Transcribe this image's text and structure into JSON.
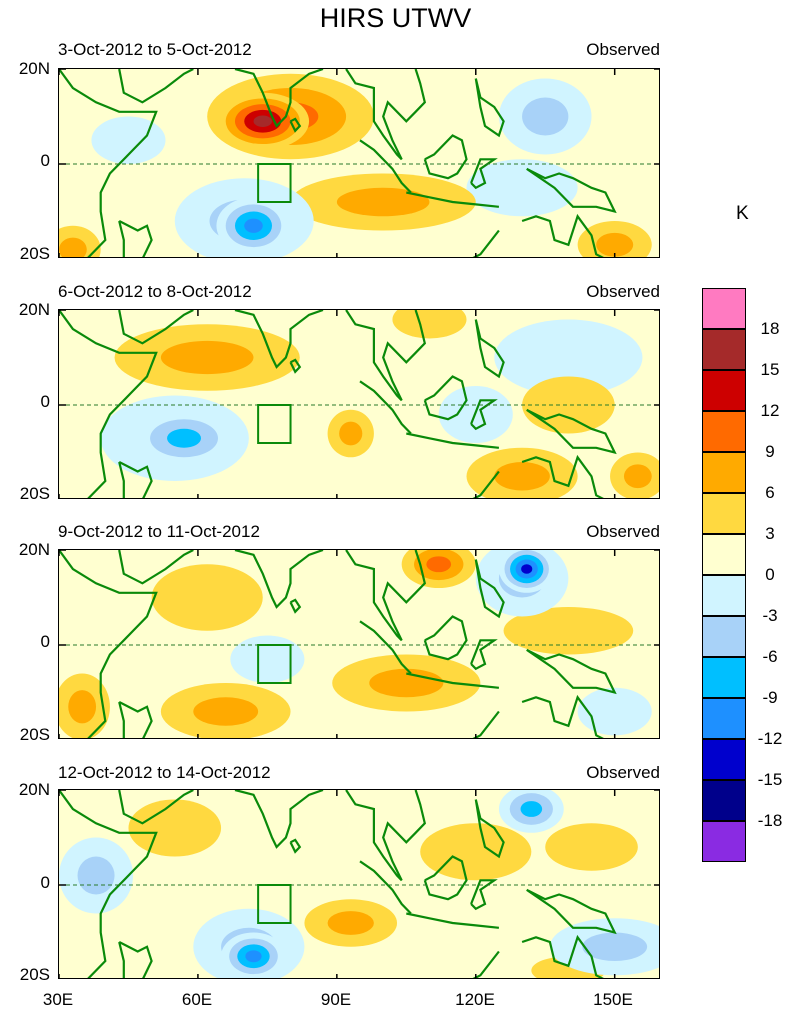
{
  "title": "HIRS UTWV",
  "unit": "K",
  "chart_data": [
    {
      "type": "heatmap",
      "title": "3-Oct-2012 to 5-Oct-2012",
      "label": "Observed",
      "ylabels": [
        "20N",
        "0",
        "20S"
      ],
      "ylim": [
        -20,
        20
      ],
      "xlim": [
        30,
        160
      ],
      "blobs": [
        {
          "lon": 74,
          "lat": 9,
          "rx": 10,
          "ry": 6,
          "v": 16
        },
        {
          "lon": 80,
          "lat": 10,
          "rx": 18,
          "ry": 9,
          "v": 9
        },
        {
          "lon": 100,
          "lat": -8,
          "rx": 20,
          "ry": 6,
          "v": 7
        },
        {
          "lon": 72,
          "lat": -13,
          "rx": 8,
          "ry": 6,
          "v": -12
        },
        {
          "lon": 70,
          "lat": -12,
          "rx": 15,
          "ry": 9,
          "v": -7
        },
        {
          "lon": 135,
          "lat": 10,
          "rx": 10,
          "ry": 8,
          "v": -7
        },
        {
          "lon": 130,
          "lat": -5,
          "rx": 12,
          "ry": 6,
          "v": -4
        },
        {
          "lon": 150,
          "lat": -17,
          "rx": 8,
          "ry": 5,
          "v": 8
        },
        {
          "lon": 33,
          "lat": -18,
          "rx": 6,
          "ry": 5,
          "v": 8
        },
        {
          "lon": 45,
          "lat": 5,
          "rx": 8,
          "ry": 5,
          "v": -4
        }
      ]
    },
    {
      "type": "heatmap",
      "title": "6-Oct-2012 to 8-Oct-2012",
      "label": "Observed",
      "ylabels": [
        "20N",
        "0",
        "20S"
      ],
      "ylim": [
        -20,
        20
      ],
      "xlim": [
        30,
        160
      ],
      "blobs": [
        {
          "lon": 62,
          "lat": 10,
          "rx": 20,
          "ry": 7,
          "v": 7
        },
        {
          "lon": 57,
          "lat": -7,
          "rx": 11,
          "ry": 6,
          "v": -10
        },
        {
          "lon": 55,
          "lat": -7,
          "rx": 16,
          "ry": 9,
          "v": -5
        },
        {
          "lon": 93,
          "lat": -6,
          "rx": 5,
          "ry": 5,
          "v": 6
        },
        {
          "lon": 140,
          "lat": 10,
          "rx": 16,
          "ry": 8,
          "v": -5
        },
        {
          "lon": 130,
          "lat": -15,
          "rx": 12,
          "ry": 6,
          "v": 8
        },
        {
          "lon": 155,
          "lat": -15,
          "rx": 6,
          "ry": 5,
          "v": 6
        },
        {
          "lon": 110,
          "lat": 18,
          "rx": 8,
          "ry": 4,
          "v": 5
        },
        {
          "lon": 140,
          "lat": 0,
          "rx": 10,
          "ry": 6,
          "v": 5
        },
        {
          "lon": 120,
          "lat": -2,
          "rx": 8,
          "ry": 6,
          "v": -3
        }
      ]
    },
    {
      "type": "heatmap",
      "title": "9-Oct-2012 to 11-Oct-2012",
      "label": "Observed",
      "ylabels": [
        "20N",
        "0",
        "20S"
      ],
      "ylim": [
        -20,
        20
      ],
      "xlim": [
        30,
        160
      ],
      "blobs": [
        {
          "lon": 131,
          "lat": 16,
          "rx": 6,
          "ry": 5,
          "v": -15
        },
        {
          "lon": 130,
          "lat": 14,
          "rx": 10,
          "ry": 8,
          "v": -7
        },
        {
          "lon": 112,
          "lat": 17,
          "rx": 8,
          "ry": 5,
          "v": 9
        },
        {
          "lon": 105,
          "lat": -8,
          "rx": 16,
          "ry": 6,
          "v": 7
        },
        {
          "lon": 66,
          "lat": -14,
          "rx": 14,
          "ry": 6,
          "v": 7
        },
        {
          "lon": 140,
          "lat": 3,
          "rx": 14,
          "ry": 5,
          "v": 5
        },
        {
          "lon": 35,
          "lat": -13,
          "rx": 6,
          "ry": 7,
          "v": 7
        },
        {
          "lon": 75,
          "lat": -3,
          "rx": 8,
          "ry": 5,
          "v": -4
        },
        {
          "lon": 150,
          "lat": -14,
          "rx": 8,
          "ry": 5,
          "v": -5
        },
        {
          "lon": 62,
          "lat": 10,
          "rx": 12,
          "ry": 7,
          "v": 3
        }
      ]
    },
    {
      "type": "heatmap",
      "title": "12-Oct-2012 to 14-Oct-2012",
      "label": "Observed",
      "ylabels": [
        "20N",
        "0",
        "20S"
      ],
      "ylim": [
        -20,
        20
      ],
      "xlim": [
        30,
        160
      ],
      "blobs": [
        {
          "lon": 72,
          "lat": -15,
          "rx": 7,
          "ry": 5,
          "v": -13
        },
        {
          "lon": 71,
          "lat": -13,
          "rx": 12,
          "ry": 8,
          "v": -7
        },
        {
          "lon": 132,
          "lat": 16,
          "rx": 7,
          "ry": 5,
          "v": -10
        },
        {
          "lon": 93,
          "lat": -8,
          "rx": 10,
          "ry": 5,
          "v": 7
        },
        {
          "lon": 38,
          "lat": 2,
          "rx": 8,
          "ry": 8,
          "v": -6
        },
        {
          "lon": 150,
          "lat": -13,
          "rx": 14,
          "ry": 6,
          "v": -6
        },
        {
          "lon": 120,
          "lat": 7,
          "rx": 12,
          "ry": 6,
          "v": 5
        },
        {
          "lon": 145,
          "lat": 8,
          "rx": 10,
          "ry": 5,
          "v": 5
        },
        {
          "lon": 55,
          "lat": 12,
          "rx": 10,
          "ry": 6,
          "v": 4
        },
        {
          "lon": 140,
          "lat": -18,
          "rx": 8,
          "ry": 3,
          "v": 5
        }
      ]
    }
  ],
  "xaxis": {
    "ticks": [
      "30E",
      "60E",
      "90E",
      "120E",
      "150E"
    ],
    "values": [
      30,
      60,
      90,
      120,
      150
    ]
  },
  "colorbar": {
    "labels": [
      "18",
      "15",
      "12",
      "9",
      "6",
      "3",
      "0",
      "-3",
      "-6",
      "-9",
      "-12",
      "-15",
      "-18"
    ],
    "colors": [
      "#ff7ac1",
      "#a52a2a",
      "#cd0000",
      "#ff6a00",
      "#ffaa00",
      "#ffd940",
      "#ffffd0",
      "#d0f4ff",
      "#a8d2f8",
      "#00bfff",
      "#1e90ff",
      "#0000cd",
      "#00008b",
      "#8a2be2"
    ]
  }
}
